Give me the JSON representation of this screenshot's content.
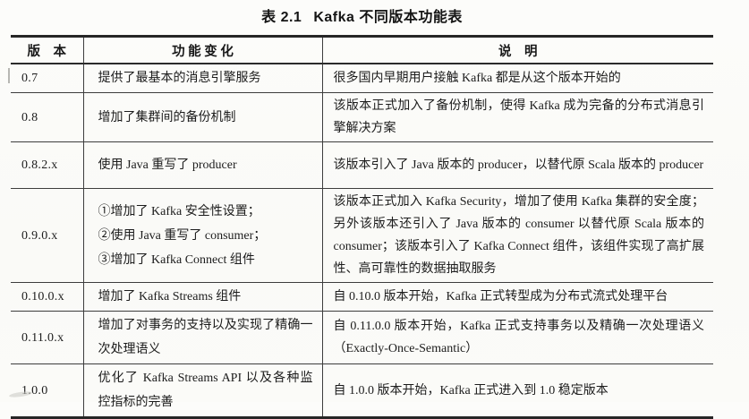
{
  "page": {
    "title": {
      "label": "表 2.1",
      "text": "Kafka 不同版本功能表"
    }
  },
  "table": {
    "headers": {
      "version": "版    本",
      "features": "功 能 变 化",
      "description": "说    明"
    },
    "rows": [
      {
        "version": "0.7",
        "features": [
          "提供了最基本的消息引擎服务"
        ],
        "description": "很多国内早期用户接触 Kafka 都是从这个版本开始的"
      },
      {
        "version": "0.8",
        "features": [
          "增加了集群间的备份机制"
        ],
        "description": "该版本正式加入了备份机制，使得 Kafka 成为完备的分布式消息引擎解决方案"
      },
      {
        "version": "0.8.2.x",
        "features": [
          "使用 Java 重写了 producer"
        ],
        "description": "该版本引入了 Java 版本的 producer，以替代原 Scala 版本的 producer"
      },
      {
        "version": "0.9.0.x",
        "features": [
          "①增加了 Kafka 安全性设置；",
          "②使用 Java 重写了 consumer；",
          "③增加了 Kafka Connect 组件"
        ],
        "description": "该版本正式加入 Kafka Security，增加了使用 Kafka 集群的安全度；另外该版本还引入了 Java 版本的 consumer 以替代原 Scala 版本的 consumer；该版本引入了 Kafka Connect 组件，该组件实现了高扩展性、高可靠性的数据抽取服务"
      },
      {
        "version": "0.10.0.x",
        "features": [
          "增加了 Kafka Streams 组件"
        ],
        "description": "自 0.10.0 版本开始，Kafka 正式转型成为分布式流式处理平台"
      },
      {
        "version": "0.11.0.x",
        "features": [
          "增加了对事务的支持以及实现了精确一次处理语义"
        ],
        "description": "自 0.11.0.0 版本开始，Kafka 正式支持事务以及精确一次处理语义（Exactly-Once-Semantic）"
      },
      {
        "version": "1.0.0",
        "features": [
          "优化了 Kafka Streams API 以及各种监控指标的完善"
        ],
        "description": "自 1.0.0 版本开始，Kafka 正式进入到 1.0 稳定版本"
      }
    ]
  }
}
